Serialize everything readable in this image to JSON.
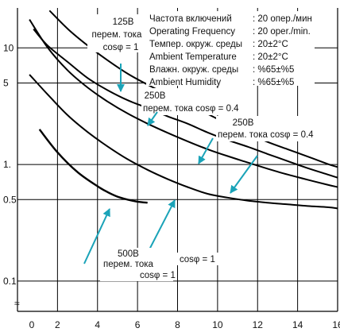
{
  "chart_data": {
    "type": "line",
    "x_scale": "linear",
    "y_scale": "log",
    "xlim": [
      0,
      16
    ],
    "ylim": [
      0.055,
      22
    ],
    "x_ticks": [
      0,
      2,
      4,
      6,
      8,
      10,
      12,
      14,
      16
    ],
    "y_ticks": [
      {
        "value": 0.1,
        "label": "0.1"
      },
      {
        "value": 0.5,
        "label": "0.5"
      },
      {
        "value": 1,
        "label": "1."
      },
      {
        "value": 5,
        "label": "5"
      },
      {
        "value": 10,
        "label": "10"
      }
    ],
    "axis_break_symbol": "≈",
    "grid": true,
    "conditions": [
      {
        "label": "Частота включений",
        "value": ": 20 опер./мин"
      },
      {
        "label": "Operating Frequency",
        "value": ": 20 oper./min."
      },
      {
        "label": "Темпер. окруж. среды",
        "value": ": 20±2°C"
      },
      {
        "label": "Ambient Temperature",
        "value": ": 20±2°C"
      },
      {
        "label": "Влажн. окруж. среды",
        "value": ": %65±%5"
      },
      {
        "label": "Ambient Humidity",
        "value": ": %65±%5"
      }
    ],
    "series": [
      {
        "id": "s125_1",
        "x": [
          1.6,
          2.5,
          3.5,
          4.5,
          5.5,
          6.5,
          7.5,
          8.5,
          9.5,
          10.5,
          11.5,
          12.5,
          13.5,
          14.5,
          15.5,
          16.0
        ],
        "y": [
          20.9,
          14.6,
          10.5,
          7.84,
          6.02,
          4.84,
          3.97,
          3.29,
          2.71,
          2.23,
          1.85,
          1.56,
          1.35,
          1.17,
          1.01,
          0.95
        ]
      },
      {
        "id": "s250_04a",
        "x": [
          0.8,
          1.5,
          2.5,
          3.5,
          4.5,
          5.5,
          6.5,
          7.5,
          8.5,
          9.5,
          10.5,
          11.5,
          12.5,
          13.5,
          14.5,
          15.5,
          16.0
        ],
        "y": [
          14.5,
          10.5,
          7.59,
          5.52,
          4.34,
          3.56,
          3.05,
          2.59,
          2.24,
          1.88,
          1.62,
          1.42,
          1.23,
          1.07,
          0.93,
          0.82,
          0.77
        ]
      },
      {
        "id": "s250_04b",
        "x": [
          0.6,
          1.5,
          2.5,
          3.5,
          4.5,
          5.5,
          6.5,
          7.5,
          8.5,
          9.5,
          10.5,
          11.5,
          12.5,
          13.5,
          14.5,
          15.5,
          16.0
        ],
        "y": [
          17.5,
          10.1,
          6.43,
          4.58,
          3.47,
          2.74,
          2.24,
          1.87,
          1.58,
          1.35,
          1.18,
          1.04,
          0.92,
          0.82,
          0.74,
          0.67,
          0.64
        ]
      },
      {
        "id": "s250_1",
        "x": [
          0.6,
          1.5,
          2.5,
          3.5,
          4.5,
          5.5,
          6.5,
          7.5,
          8.5,
          9.5,
          10.5,
          11.5,
          12.5,
          13.5,
          14.5,
          15.5,
          16.0
        ],
        "y": [
          5.9,
          4.0,
          2.65,
          1.9,
          1.43,
          1.11,
          0.9,
          0.75,
          0.64,
          0.56,
          0.52,
          0.49,
          0.47,
          0.455,
          0.44,
          0.43,
          0.42
        ]
      },
      {
        "id": "s500_1",
        "x": [
          1.1,
          2.0,
          3.0,
          4.0,
          4.5,
          5.0,
          5.5,
          6.0,
          6.5
        ],
        "y": [
          2.0,
          1.27,
          0.86,
          0.65,
          0.58,
          0.53,
          0.5,
          0.48,
          0.47
        ]
      }
    ],
    "annotations": [
      {
        "lines": [
          "125В",
          "перем. тока",
          "cosφ = 1"
        ],
        "arrow_to": [
          5.0,
          8.3
        ]
      },
      {
        "lines": [
          "250В",
          "перем. тока  cosφ = 0.4"
        ],
        "arrow_to": [
          5.8,
          3.4
        ]
      },
      {
        "lines": [
          "250В",
          "перем. тока  cosφ = 0.4"
        ],
        "arrow_to": [
          8.8,
          1.6
        ]
      },
      {
        "lines": [
          "",
          "",
          ""
        ],
        "arrow_to": [
          10.4,
          0.86
        ]
      },
      {
        "lines": [
          "cosφ = 1"
        ],
        "arrow_to": [
          7.5,
          0.67
        ]
      },
      {
        "lines": [
          "500В",
          "перем. тока",
          "cosφ = 1"
        ],
        "arrow_to": [
          4.2,
          0.62
        ]
      }
    ]
  },
  "colors": {
    "curve": "#000000",
    "grid": "#000000",
    "arrow": "#1aa3b8",
    "axis_text": "#111111"
  }
}
